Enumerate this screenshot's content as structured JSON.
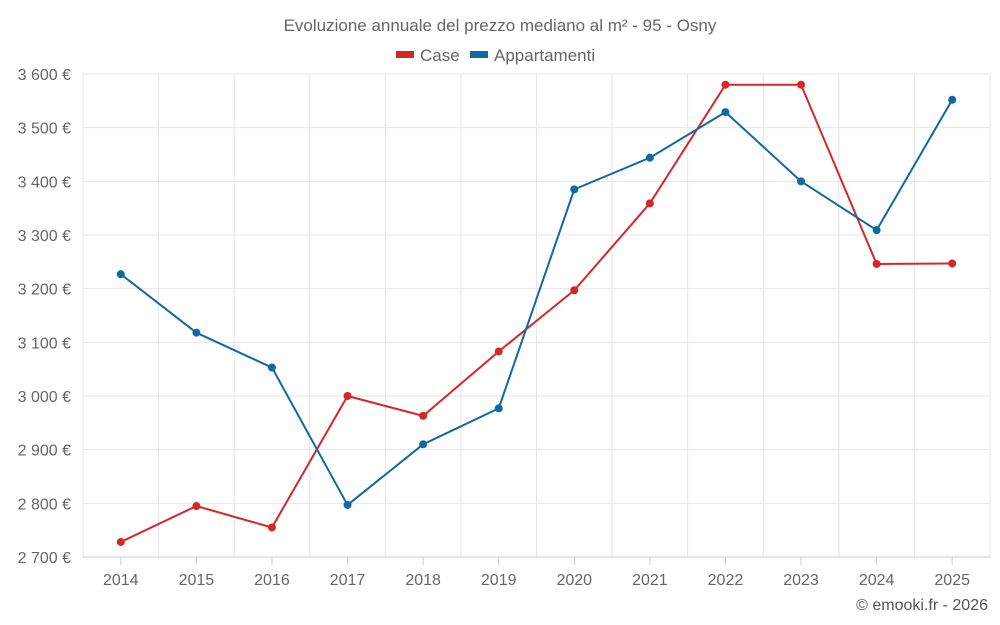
{
  "chart_data": {
    "type": "line",
    "title": "Evoluzione annuale del prezzo mediano al m² - 95 - Osny",
    "categories": [
      "2014",
      "2015",
      "2016",
      "2017",
      "2018",
      "2019",
      "2020",
      "2021",
      "2022",
      "2023",
      "2024",
      "2025"
    ],
    "series": [
      {
        "name": "Case",
        "color": "#d62728",
        "values": [
          2728,
          2795,
          2755,
          3000,
          2963,
          3083,
          3197,
          3359,
          3580,
          3580,
          3246,
          3247
        ]
      },
      {
        "name": "Appartamenti",
        "color": "#0f6aa0",
        "values": [
          3227,
          3118,
          3053,
          2797,
          2910,
          2977,
          3385,
          3444,
          3529,
          3400,
          3309,
          3552
        ]
      }
    ],
    "ylim": [
      2700,
      3600
    ],
    "yticks": [
      2700,
      2800,
      2900,
      3000,
      3100,
      3200,
      3300,
      3400,
      3500,
      3600
    ],
    "ytick_labels": [
      "2 700 €",
      "2 800 €",
      "2 900 €",
      "3 000 €",
      "3 100 €",
      "3 200 €",
      "3 300 €",
      "3 400 €",
      "3 500 €",
      "3 600 €"
    ],
    "xlabel": "",
    "ylabel": "",
    "grid": true,
    "legend_position": "top-center",
    "credit": "© emooki.fr - 2026"
  }
}
